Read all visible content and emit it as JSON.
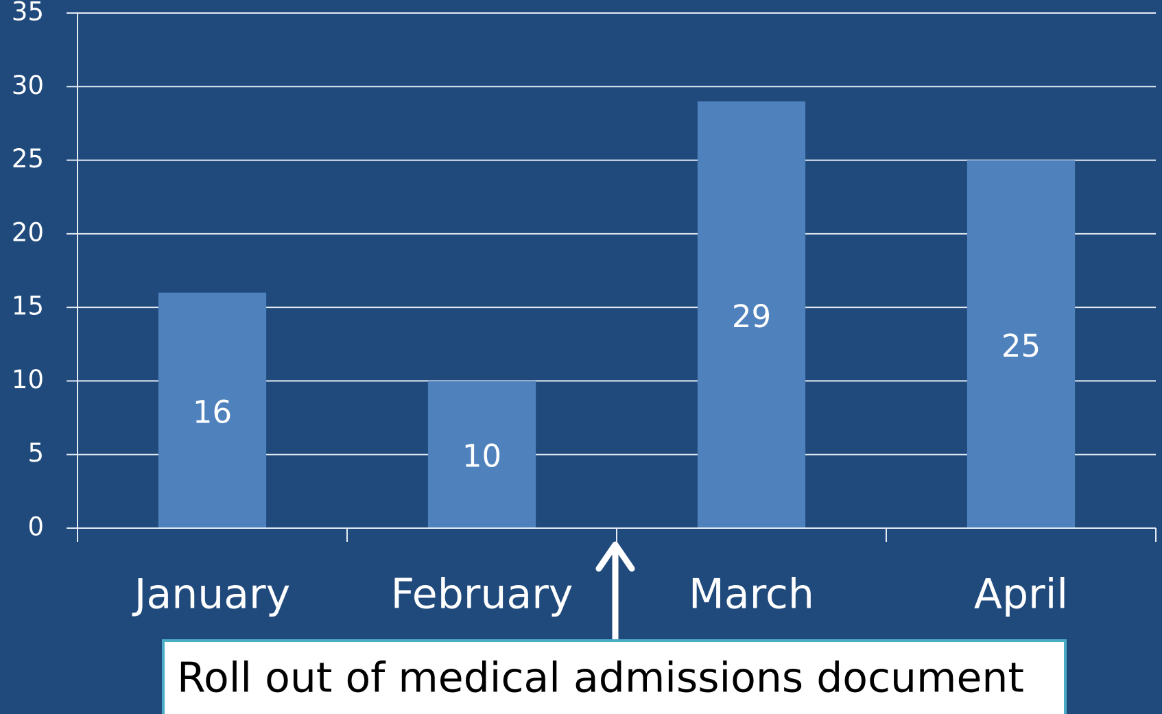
{
  "chart_data": {
    "type": "bar",
    "categories": [
      "January",
      "February",
      "March",
      "April"
    ],
    "values": [
      16,
      10,
      29,
      25
    ],
    "color": "#4f81bd",
    "ylim": [
      0,
      35
    ],
    "yticks": [
      0,
      5,
      10,
      15,
      20,
      25,
      30,
      35
    ],
    "grid": true,
    "annotation": "Roll out of medical admissions document"
  }
}
